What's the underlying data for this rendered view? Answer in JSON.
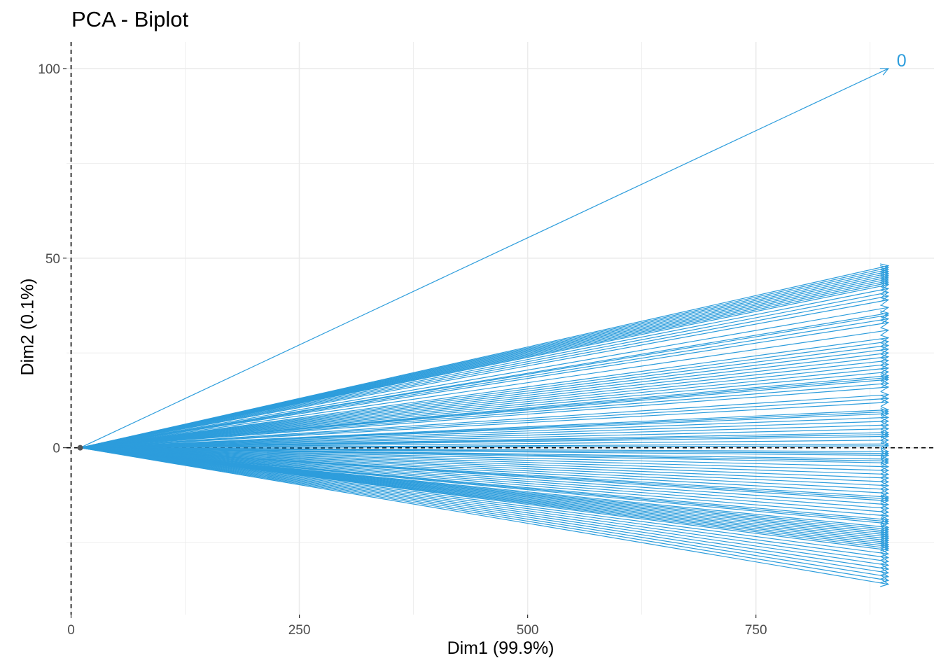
{
  "colors": {
    "vector": "#2d9ddc",
    "grid": "#ebebeb",
    "axis_text": "#4d4d4d",
    "ref_line": "#000000"
  },
  "chart_data": {
    "type": "biplot",
    "title": "PCA - Biplot",
    "xlabel": "Dim1 (99.9%)",
    "ylabel": "Dim2 (0.1%)",
    "xlim": [
      -5,
      945
    ],
    "ylim": [
      -44,
      107
    ],
    "xticks": [
      0,
      250,
      500,
      750
    ],
    "yticks": [
      0,
      50,
      100
    ],
    "grid": true,
    "reference_lines": {
      "x": 0,
      "y": 0
    },
    "origin": [
      10,
      0
    ],
    "labeled_vectors": [
      {
        "label": "0",
        "x": 895,
        "y": 100
      }
    ],
    "vectors_end_x": 895,
    "vectors_end_y": [
      48,
      47.5,
      47,
      46.5,
      46,
      45.5,
      45,
      44.5,
      44,
      43.5,
      43,
      42,
      41,
      40,
      39,
      37,
      35.5,
      35,
      34,
      33,
      31,
      29,
      28,
      27,
      26,
      25,
      24,
      23,
      22,
      21,
      20,
      19,
      18.5,
      18,
      17,
      16,
      14,
      13,
      12,
      10,
      9.5,
      9,
      8,
      7,
      6,
      5,
      4,
      3.5,
      3,
      2,
      1,
      0.5,
      -1,
      -1.5,
      -2,
      -3,
      -3.5,
      -4,
      -5,
      -6,
      -7,
      -8,
      -9,
      -10,
      -11,
      -12,
      -13,
      -13.5,
      -14,
      -15,
      -16,
      -17,
      -18,
      -19,
      -19.5,
      -20,
      -21,
      -21.5,
      -22,
      -22.5,
      -23,
      -23.5,
      -24,
      -24.5,
      -25,
      -25.5,
      -26,
      -26.5,
      -27,
      -28,
      -29,
      -30,
      -31,
      -32,
      -33,
      -34,
      -35,
      -36
    ]
  }
}
